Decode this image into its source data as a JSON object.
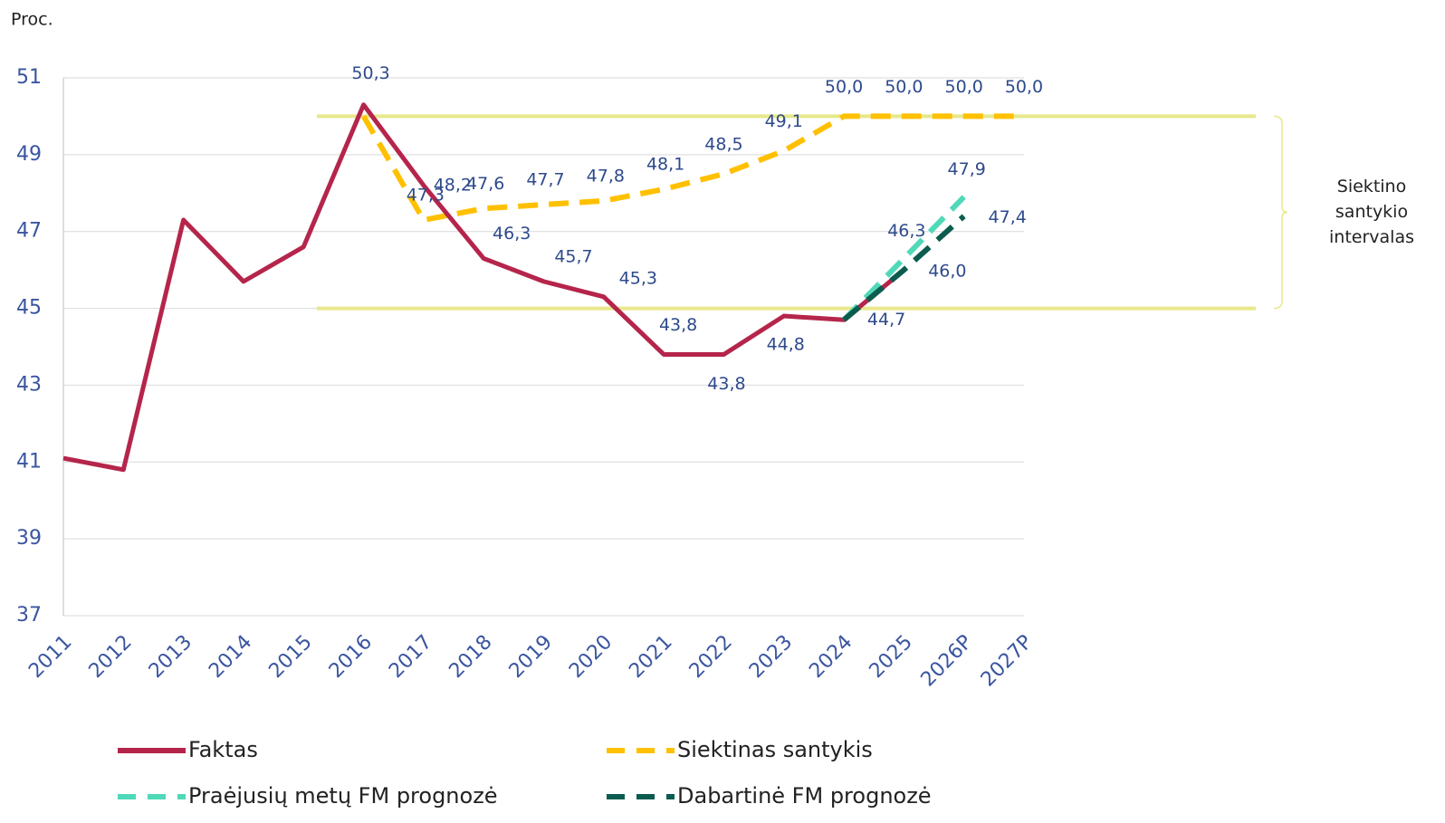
{
  "chart_data": {
    "type": "line",
    "y_label": "Proc.",
    "categories": [
      "2011",
      "2012",
      "2013",
      "2014",
      "2015",
      "2016",
      "2017",
      "2018",
      "2019",
      "2020",
      "2021",
      "2022",
      "2023",
      "2024",
      "2025",
      "2026P",
      "2027P"
    ],
    "ylim": [
      37,
      51
    ],
    "yticks": [
      37,
      39,
      41,
      43,
      45,
      47,
      49,
      51
    ],
    "grid": true,
    "band": {
      "low": 45,
      "high": 50,
      "color": "#e8e88c",
      "label": [
        "Siektino",
        "santykio",
        "intervalas"
      ]
    },
    "series": [
      {
        "name": "Siektinas santykis",
        "color": "#ffc000",
        "dash": true,
        "values": [
          null,
          null,
          null,
          null,
          null,
          50.0,
          47.3,
          47.6,
          47.7,
          47.8,
          48.1,
          48.5,
          49.1,
          50.0,
          50.0,
          50.0,
          50.0
        ],
        "value_labels": [
          null,
          null,
          null,
          null,
          null,
          null,
          "47,3",
          "47,6",
          "47,7",
          "47,8",
          "48,1",
          "48,5",
          "49,1",
          "50,0",
          "50,0",
          "50,0",
          "50,0"
        ]
      },
      {
        "name": "Faktas",
        "color": "#b5254b",
        "dash": false,
        "values": [
          41.1,
          40.8,
          47.3,
          45.7,
          46.6,
          50.3,
          48.2,
          46.3,
          45.7,
          45.3,
          43.8,
          43.8,
          44.8,
          44.7,
          46.0,
          null,
          null
        ],
        "value_labels": [
          null,
          null,
          null,
          null,
          null,
          "50,3",
          "48,2",
          "46,3",
          "45,7",
          "45,3",
          "43,8",
          "43,8",
          "44,8",
          "44,7",
          null,
          null,
          null
        ]
      },
      {
        "name": "Praėjusių metų FM prognozė",
        "color": "#4fd9b8",
        "dash": true,
        "values": [
          null,
          null,
          null,
          null,
          null,
          null,
          null,
          null,
          null,
          null,
          null,
          null,
          null,
          44.7,
          46.3,
          47.9,
          null
        ],
        "value_labels": [
          null,
          null,
          null,
          null,
          null,
          null,
          null,
          null,
          null,
          null,
          null,
          null,
          null,
          null,
          "46,3",
          "47,9",
          null
        ]
      },
      {
        "name": "Dabartinė FM prognozė",
        "color": "#0b5c4f",
        "dash": true,
        "values": [
          null,
          null,
          null,
          null,
          null,
          null,
          null,
          null,
          null,
          null,
          null,
          null,
          null,
          44.7,
          46.0,
          47.4,
          null
        ],
        "value_labels": [
          null,
          null,
          null,
          null,
          null,
          null,
          null,
          null,
          null,
          null,
          null,
          null,
          null,
          null,
          "46,0",
          "47,4",
          null
        ]
      }
    ]
  }
}
